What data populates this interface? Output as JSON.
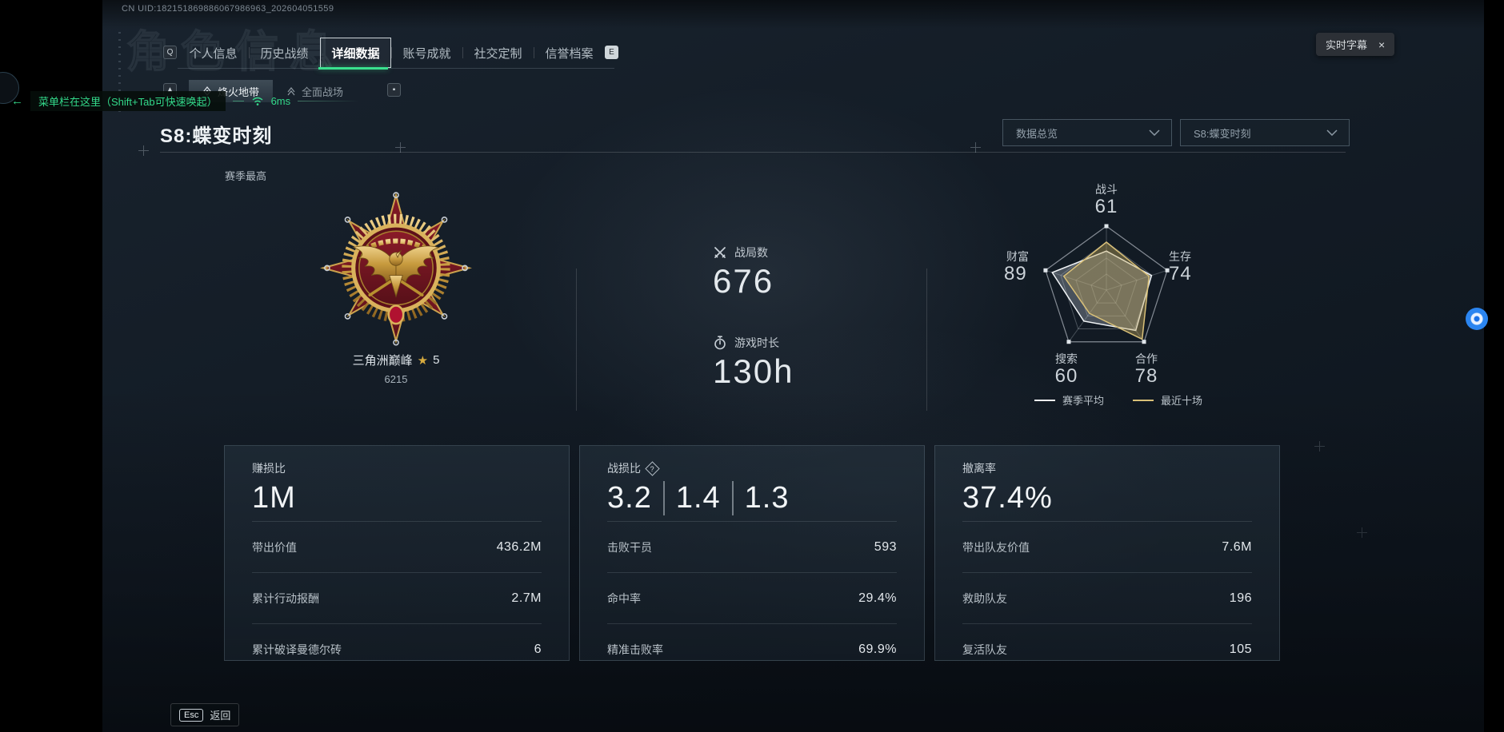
{
  "window": {
    "uid": "CN UID:182151869886067986963_202604051559",
    "ghost_title": "角色信息",
    "live_caption": {
      "label": "实时字幕",
      "close": "×"
    }
  },
  "menu_hint": {
    "arrow": "←",
    "text": "菜单栏在这里（Shift+Tab可快速唤起）",
    "ping": "6ms"
  },
  "nav": {
    "key_left": "Q",
    "key_right": "E",
    "tabs": [
      {
        "label": "个人信息"
      },
      {
        "label": "历史战绩"
      },
      {
        "label": "详细数据",
        "active": true
      },
      {
        "label": "账号成就"
      },
      {
        "label": "社交定制"
      },
      {
        "label": "信誉档案"
      }
    ]
  },
  "subnav": {
    "key_left": "▲",
    "key_right": "▪",
    "tabs": [
      {
        "label": "烽火地带",
        "active": true
      },
      {
        "label": "全面战场"
      }
    ]
  },
  "page": {
    "title": "S8:蝶变时刻",
    "season_best": "赛季最高",
    "filters": [
      {
        "value": "数据总览"
      },
      {
        "value": "S8:蝶变时刻"
      }
    ]
  },
  "medal": {
    "name": "三角洲巅峰",
    "star": "★",
    "stars": "5",
    "score": "6215"
  },
  "summary": {
    "battles": {
      "label": "战局数",
      "value": "676"
    },
    "playtime": {
      "label": "游戏时长",
      "value": "130h"
    }
  },
  "chart_data": {
    "type": "radar",
    "categories": [
      "战斗",
      "生存",
      "合作",
      "搜索",
      "财富"
    ],
    "axis_values": [
      61,
      74,
      78,
      60,
      89
    ],
    "max": 100,
    "series": [
      {
        "name": "赛季平均",
        "values": [
          61,
          74,
          78,
          60,
          89
        ],
        "color": "#f2f5f7",
        "fill": "rgba(190,200,212,0.32)"
      },
      {
        "name": "最近十场",
        "values": [
          75,
          70,
          95,
          45,
          70
        ],
        "color": "#d9c078",
        "fill": "rgba(198,170,92,0.40)"
      }
    ],
    "legend_position": "bottom",
    "grid": true
  },
  "cards": [
    {
      "title": "赚损比",
      "value": "1M",
      "rows": [
        {
          "label": "带出价值",
          "value": "436.2M"
        },
        {
          "label": "累计行动报酬",
          "value": "2.7M"
        },
        {
          "label": "累计破译曼德尔砖",
          "value": "6"
        }
      ]
    },
    {
      "title": "战损比",
      "help": "?",
      "values": [
        "3.2",
        "1.4",
        "1.3"
      ],
      "rows": [
        {
          "label": "击败干员",
          "value": "593"
        },
        {
          "label": "命中率",
          "value": "29.4%"
        },
        {
          "label": "精准击败率",
          "value": "69.9%"
        }
      ]
    },
    {
      "title": "撤离率",
      "value": "37.4%",
      "rows": [
        {
          "label": "带出队友价值",
          "value": "7.6M"
        },
        {
          "label": "救助队友",
          "value": "196"
        },
        {
          "label": "复活队友",
          "value": "105"
        }
      ]
    }
  ],
  "footer": {
    "esc_key": "Esc",
    "back": "返回"
  },
  "colors": {
    "accent_green": "#3ae08e",
    "gold": "#d9c078",
    "caption_bubble_blue": "#1d74e8"
  }
}
